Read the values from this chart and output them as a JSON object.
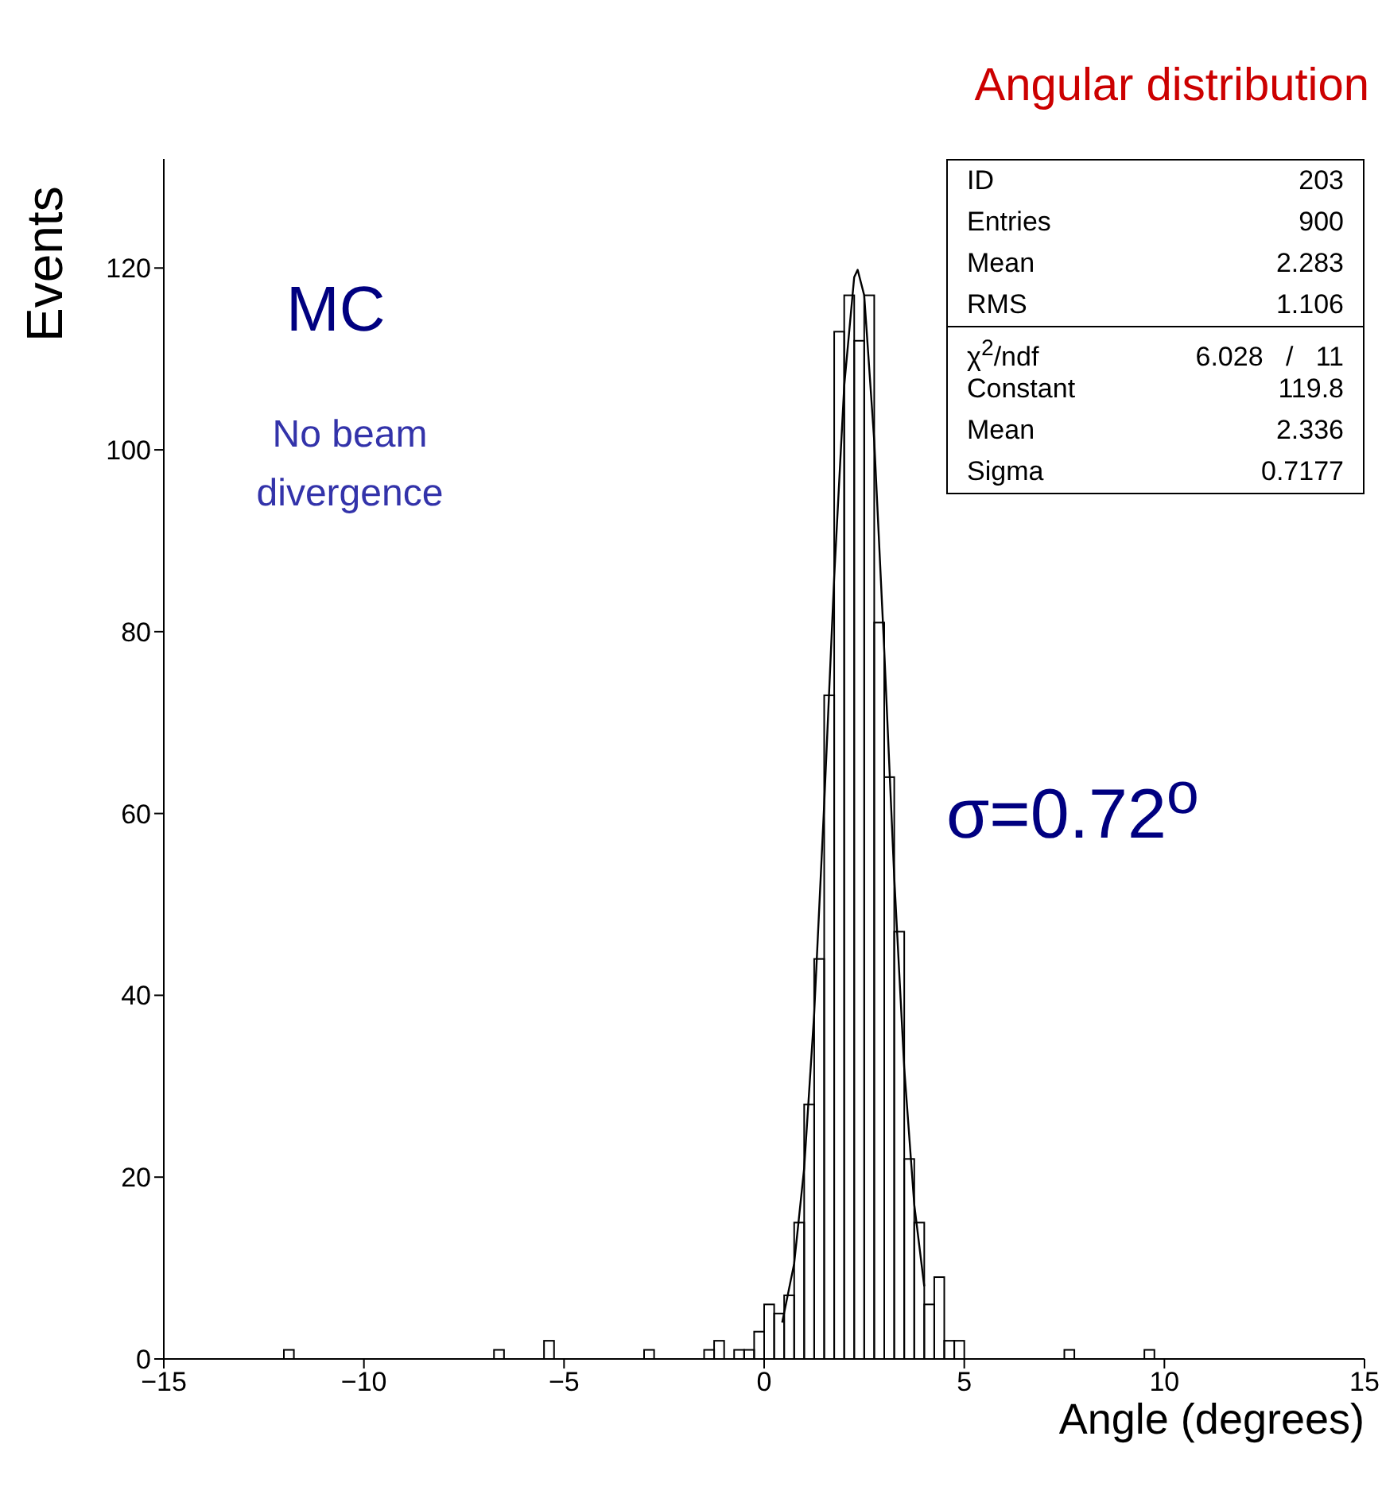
{
  "chart_data": {
    "type": "histogram",
    "title": "Angular distribution",
    "xlabel": "Angle (degrees)",
    "ylabel": "Events",
    "bins": [
      -15,
      -14.75,
      -14.5,
      -14.25,
      -14,
      -13.75,
      -13.5,
      -13.25,
      -13,
      -12.75,
      -12.5,
      -12.25,
      -12,
      -11.75,
      -11.5,
      -11.25,
      -11,
      -10.75,
      -10.5,
      -10.25,
      -10,
      -9.75,
      -9.5,
      -9.25,
      -9,
      -8.75,
      -8.5,
      -8.25,
      -8,
      -7.75,
      -7.5,
      -7.25,
      -7,
      -6.75,
      -6.5,
      -6.25,
      -6,
      -5.75,
      -5.5,
      -5.25,
      -5,
      -4.75,
      -4.5,
      -4.25,
      -4,
      -3.75,
      -3.5,
      -3.25,
      -3,
      -2.75,
      -2.5,
      -2.25,
      -2,
      -1.75,
      -1.5,
      -1.25,
      -1,
      -0.75,
      -0.5,
      -0.25,
      0,
      0.25,
      0.5,
      0.75,
      1,
      1.25,
      1.5,
      1.75,
      2,
      2.25,
      2.5,
      2.75,
      3,
      3.25,
      3.5,
      3.75,
      4,
      4.25,
      4.5,
      4.75,
      5,
      5.25,
      5.5,
      5.75,
      6,
      6.25,
      6.5,
      6.75,
      7,
      7.25,
      7.5,
      7.75,
      8,
      8.25,
      8.5,
      8.75,
      9,
      9.25,
      9.5,
      9.75,
      10,
      10.25,
      10.5,
      10.75,
      11,
      11.25,
      11.5,
      11.75,
      12,
      12.25,
      12.5,
      12.75,
      13,
      13.25,
      13.5,
      13.75,
      14,
      14.25,
      14.5,
      14.75,
      15
    ],
    "series": [
      {
        "color": "#000000",
        "values": [
          0,
          0,
          0,
          0,
          0,
          0,
          0,
          0,
          0,
          0,
          0,
          0,
          1,
          0,
          0,
          0,
          0,
          0,
          0,
          0,
          0,
          0,
          0,
          0,
          0,
          0,
          0,
          0,
          0,
          0,
          0,
          0,
          0,
          1,
          0,
          0,
          0,
          0,
          2,
          0,
          0,
          0,
          0,
          0,
          0,
          0,
          0,
          0,
          1,
          0,
          0,
          0,
          0,
          0,
          1,
          2,
          0,
          1,
          1,
          3,
          6,
          5,
          7,
          15,
          28,
          44,
          73,
          113,
          117,
          112,
          117,
          81,
          64,
          47,
          22,
          15,
          6,
          9,
          2,
          2,
          0,
          0,
          0,
          0,
          0,
          0,
          0,
          0,
          0,
          0,
          1,
          0,
          0,
          0,
          0,
          0,
          0,
          0,
          1,
          0,
          0,
          0,
          0,
          0,
          0,
          0,
          0,
          0,
          0,
          0,
          0,
          0,
          0,
          0,
          0,
          0,
          0,
          0,
          0,
          0
        ]
      },
      {
        "type": "line",
        "color": "#000000",
        "x": [
          0.45,
          0.75,
          1,
          1.25,
          1.5,
          1.75,
          2,
          2.25,
          2.336,
          2.5,
          2.75,
          3,
          3.25,
          3.5,
          3.75,
          4
        ],
        "values": [
          4,
          10.5,
          21,
          38,
          61,
          86,
          107,
          119,
          119.8,
          117,
          101,
          78,
          53,
          32,
          17,
          8
        ]
      }
    ],
    "xlim": [
      -15,
      15
    ],
    "xticks": [
      -15,
      -10,
      -5,
      0,
      5,
      10,
      15
    ],
    "ylim": [
      0,
      132
    ],
    "yticks": [
      0,
      20,
      40,
      60,
      80,
      100,
      120
    ],
    "annotations": [
      "MC",
      "No beam divergence",
      "σ=0.72$^{o}$",
      "ID",
      "203",
      "Entries",
      "900",
      "Mean",
      "2.283",
      "RMS",
      "1.106",
      "χ$^{2}$/ndf",
      "6.028   /   11",
      "Constant",
      "119.8",
      "Mean",
      "2.336",
      "Sigma",
      "0.7177"
    ]
  }
}
